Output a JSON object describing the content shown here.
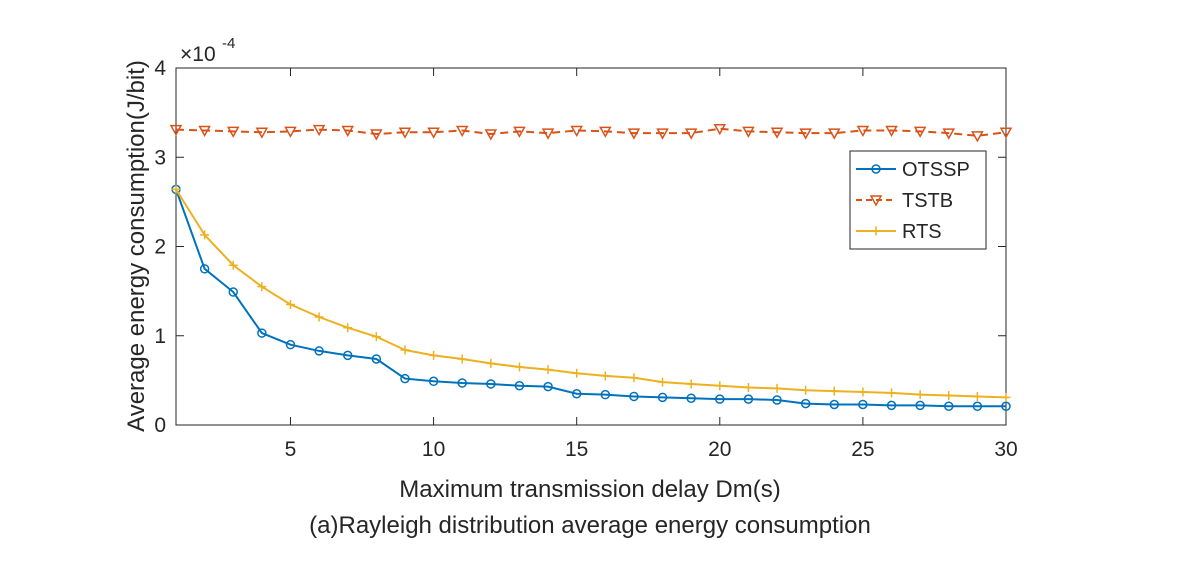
{
  "chart_data": {
    "type": "line",
    "caption": "(a)Rayleigh distribution average energy consumption",
    "xlabel": "Maximum transmission delay Dm(s)",
    "ylabel": "Average energy consumption(J/bit)",
    "y_exponent_label": "×10",
    "y_exponent": "-4",
    "xlim": [
      1,
      30
    ],
    "ylim": [
      0,
      4
    ],
    "xticks": [
      5,
      10,
      15,
      20,
      25,
      30
    ],
    "yticks": [
      0,
      1,
      2,
      3,
      4
    ],
    "grid": false,
    "legend_position": "right",
    "x": [
      1,
      2,
      3,
      4,
      5,
      6,
      7,
      8,
      9,
      10,
      11,
      12,
      13,
      14,
      15,
      16,
      17,
      18,
      19,
      20,
      21,
      22,
      23,
      24,
      25,
      26,
      27,
      28,
      29,
      30
    ],
    "series": [
      {
        "name": "OTSSP",
        "color": "#0072BD",
        "marker": "circle",
        "dash": "solid",
        "values": [
          2.64,
          1.75,
          1.49,
          1.03,
          0.9,
          0.83,
          0.78,
          0.74,
          0.52,
          0.49,
          0.47,
          0.46,
          0.44,
          0.43,
          0.35,
          0.34,
          0.32,
          0.31,
          0.3,
          0.29,
          0.29,
          0.28,
          0.24,
          0.23,
          0.23,
          0.22,
          0.22,
          0.21,
          0.21,
          0.21
        ]
      },
      {
        "name": "TSTB",
        "color": "#D95319",
        "marker": "triangle-down",
        "dash": "dashed",
        "values": [
          3.31,
          3.3,
          3.29,
          3.28,
          3.29,
          3.31,
          3.3,
          3.26,
          3.28,
          3.28,
          3.3,
          3.26,
          3.29,
          3.27,
          3.3,
          3.29,
          3.27,
          3.27,
          3.27,
          3.32,
          3.29,
          3.28,
          3.27,
          3.27,
          3.3,
          3.3,
          3.29,
          3.27,
          3.24,
          3.28
        ]
      },
      {
        "name": "RTS",
        "color": "#EDB120",
        "marker": "plus",
        "dash": "solid",
        "values": [
          2.64,
          2.13,
          1.79,
          1.55,
          1.35,
          1.21,
          1.09,
          0.99,
          0.84,
          0.78,
          0.74,
          0.69,
          0.65,
          0.62,
          0.58,
          0.55,
          0.53,
          0.48,
          0.46,
          0.44,
          0.42,
          0.41,
          0.39,
          0.38,
          0.37,
          0.36,
          0.34,
          0.33,
          0.32,
          0.31
        ]
      }
    ]
  }
}
